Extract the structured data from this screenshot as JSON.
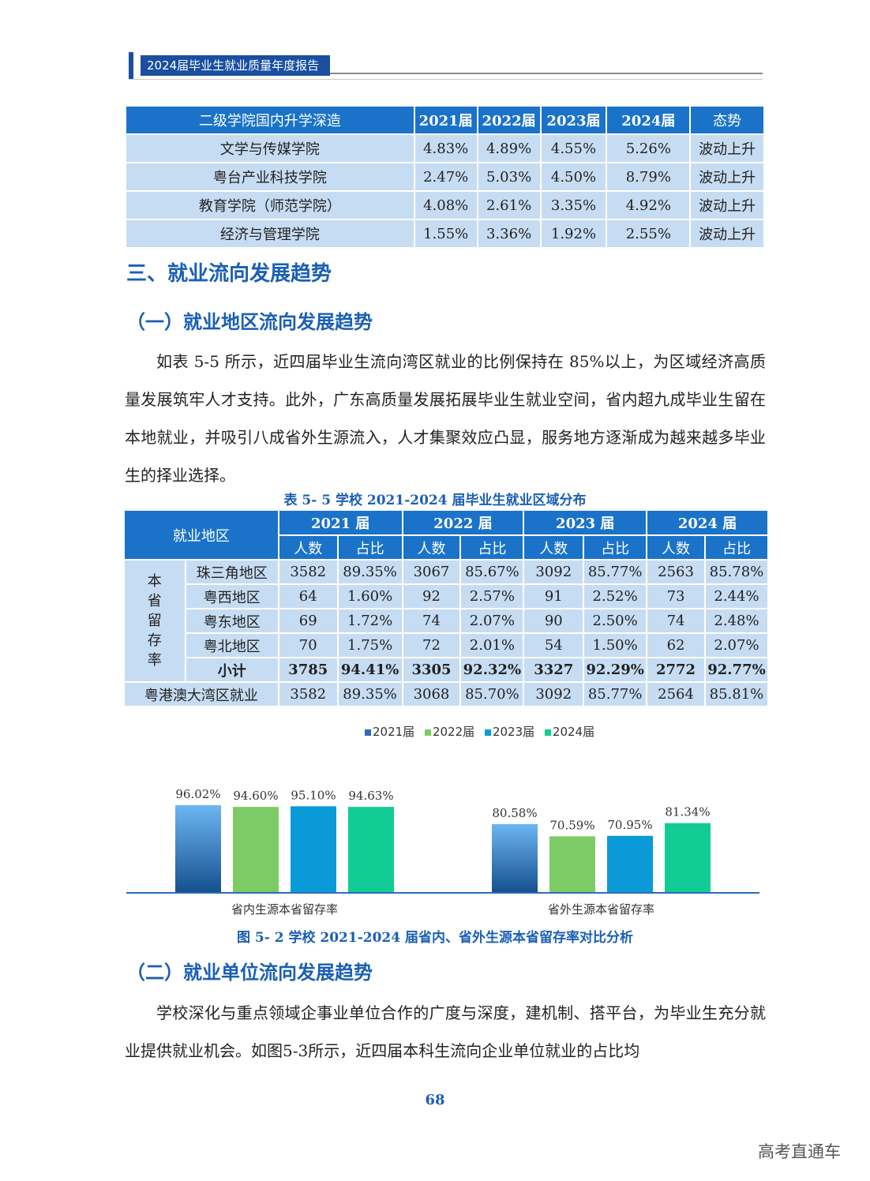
{
  "header": {
    "title": "2024届毕业生就业质量年度报告"
  },
  "table1": {
    "headers": [
      "二级学院国内升学深造",
      "2021届",
      "2022届",
      "2023届",
      "2024届",
      "态势"
    ],
    "rows": [
      [
        "文学与传媒学院",
        "4.83%",
        "4.89%",
        "4.55%",
        "5.26%",
        "波动上升"
      ],
      [
        "粤台产业科技学院",
        "2.47%",
        "5.03%",
        "4.50%",
        "8.79%",
        "波动上升"
      ],
      [
        "教育学院（师范学院）",
        "4.08%",
        "2.61%",
        "3.35%",
        "4.92%",
        "波动上升"
      ],
      [
        "经济与管理学院",
        "1.55%",
        "3.36%",
        "1.92%",
        "2.55%",
        "波动上升"
      ]
    ]
  },
  "section3": {
    "title": "三、就业流向发展趋势"
  },
  "sub1": {
    "title": "（一）就业地区流向发展趋势"
  },
  "para1": {
    "text": "如表 5-5 所示，近四届毕业生流向湾区就业的比例保持在 85%以上，为区域经济高质量发展筑牢人才支持。此外，广东高质量发展拓展毕业生就业空间，省内超九成毕业生留在本地就业，并吸引八成省外生源流入，人才集聚效应凸显，服务地方逐渐成为越来越多毕业生的择业选择。"
  },
  "table2": {
    "caption": "表 5- 5  学校 2021-2024 届毕业生就业区域分布",
    "region_header": "就业地区",
    "years": [
      "2021 届",
      "2022 届",
      "2023 届",
      "2024 届"
    ],
    "sub_headers": [
      "人数",
      "占比"
    ],
    "group_label": "本省留存率",
    "rows": [
      {
        "name": "珠三角地区",
        "cells": [
          "3582",
          "89.35%",
          "3067",
          "85.67%",
          "3092",
          "85.77%",
          "2563",
          "85.78%"
        ]
      },
      {
        "name": "粤西地区",
        "cells": [
          "64",
          "1.60%",
          "92",
          "2.57%",
          "91",
          "2.52%",
          "73",
          "2.44%"
        ]
      },
      {
        "name": "粤东地区",
        "cells": [
          "69",
          "1.72%",
          "74",
          "2.07%",
          "90",
          "2.50%",
          "74",
          "2.48%"
        ]
      },
      {
        "name": "粤北地区",
        "cells": [
          "70",
          "1.75%",
          "72",
          "2.01%",
          "54",
          "1.50%",
          "62",
          "2.07%"
        ]
      },
      {
        "name": "小计",
        "cells": [
          "3785",
          "94.41%",
          "3305",
          "92.32%",
          "3327",
          "92.29%",
          "2772",
          "92.77%"
        ]
      }
    ],
    "bay_row": {
      "name": "粤港澳大湾区就业",
      "cells": [
        "3582",
        "89.35%",
        "3068",
        "85.70%",
        "3092",
        "85.77%",
        "2564",
        "85.81%"
      ]
    }
  },
  "chart_data": {
    "type": "bar",
    "categories": [
      "省内生源本省留存率",
      "省外生源本省留存率"
    ],
    "series": [
      {
        "name": "2021届",
        "values": [
          96.02,
          80.58
        ],
        "labels": [
          "96.02%",
          "80.58%"
        ],
        "color": "#2a6fb5"
      },
      {
        "name": "2022届",
        "values": [
          94.6,
          70.59
        ],
        "labels": [
          "94.60%",
          "70.59%"
        ],
        "color": "#7dcb64"
      },
      {
        "name": "2023届",
        "values": [
          95.1,
          70.95
        ],
        "labels": [
          "95.10%",
          "70.95%"
        ],
        "color": "#0a9ad8"
      },
      {
        "name": "2024届",
        "values": [
          94.63,
          81.34
        ],
        "labels": [
          "94.63%",
          "81.34%"
        ],
        "color": "#12cc95"
      }
    ],
    "title": "图 5- 2  学校 2021-2024 届省内、省外生源本省留存率对比分析",
    "legend": "top-center"
  },
  "sub2": {
    "title": "（二）就业单位流向发展趋势"
  },
  "para2": {
    "text": "学校深化与重点领域企事业单位合作的广度与深度，建机制、搭平台，为毕业生充分就业提供就业机会。如图5-3所示，近四届本科生流向企业单位就业的占比均"
  },
  "page_number": "68",
  "watermark": "高考直通车"
}
